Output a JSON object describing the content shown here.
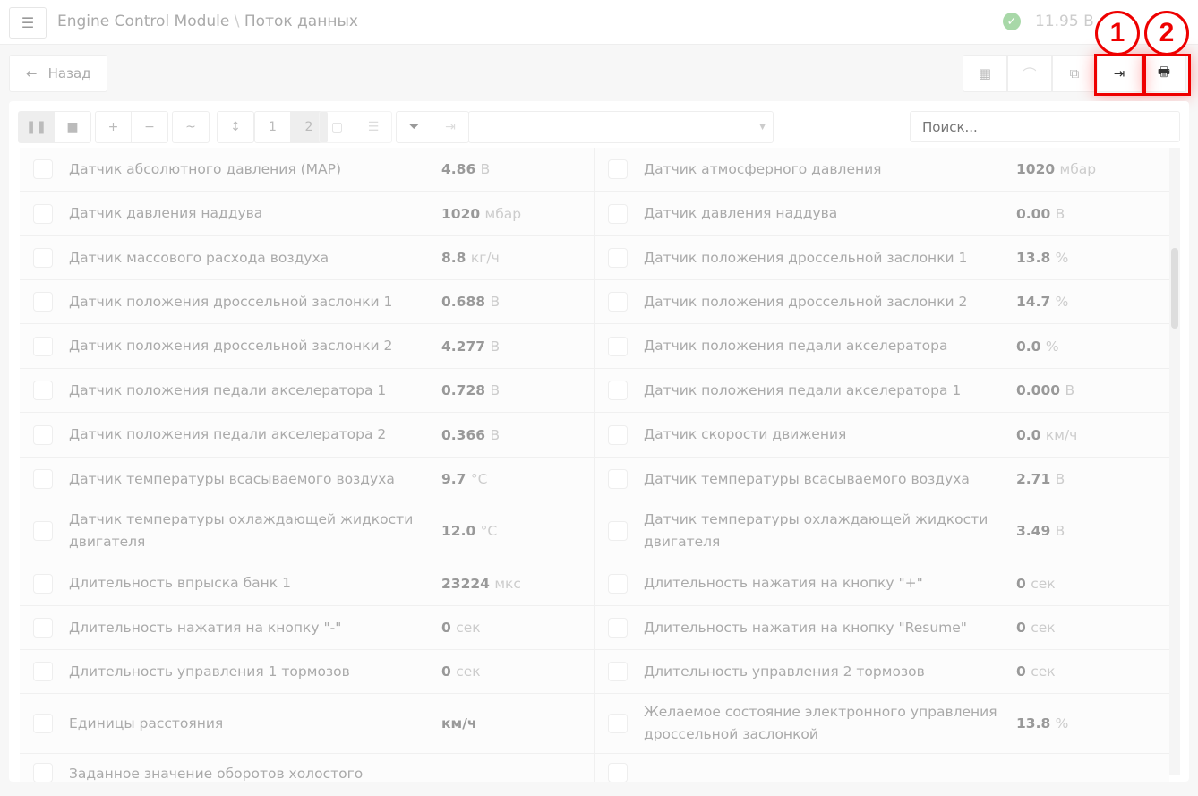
{
  "header": {
    "app": "Engine Control Module",
    "separator": "\\",
    "page": "Поток данных",
    "voltage": "11.95 В"
  },
  "nav": {
    "back_label": "Назад"
  },
  "toolbar": {
    "page1": "1",
    "page2": "2",
    "search_placeholder": "Поиск..."
  },
  "annotations": [
    "1",
    "2"
  ],
  "rows": [
    [
      {
        "label": "Датчик абсолютного давления (MAP)",
        "value": "4.86",
        "unit": "В"
      },
      {
        "label": "Датчик атмосферного давления",
        "value": "1020",
        "unit": "мбар"
      }
    ],
    [
      {
        "label": "Датчик давления наддува",
        "value": "1020",
        "unit": "мбар"
      },
      {
        "label": "Датчик давления наддува",
        "value": "0.00",
        "unit": "В"
      }
    ],
    [
      {
        "label": "Датчик массового расхода воздуха",
        "value": "8.8",
        "unit": "кг/ч"
      },
      {
        "label": "Датчик положения дроссельной заслонки 1",
        "value": "13.8",
        "unit": "%"
      }
    ],
    [
      {
        "label": "Датчик положения дроссельной заслонки 1",
        "value": "0.688",
        "unit": "В"
      },
      {
        "label": "Датчик положения дроссельной заслонки 2",
        "value": "14.7",
        "unit": "%"
      }
    ],
    [
      {
        "label": "Датчик положения дроссельной заслонки 2",
        "value": "4.277",
        "unit": "В"
      },
      {
        "label": "Датчик положения педали акселератора",
        "value": "0.0",
        "unit": "%"
      }
    ],
    [
      {
        "label": "Датчик положения педали акселератора 1",
        "value": "0.728",
        "unit": "В"
      },
      {
        "label": "Датчик положения педали акселератора 1",
        "value": "0.000",
        "unit": "В"
      }
    ],
    [
      {
        "label": "Датчик положения педали акселератора 2",
        "value": "0.366",
        "unit": "В"
      },
      {
        "label": "Датчик скорости движения",
        "value": "0.0",
        "unit": "км/ч"
      }
    ],
    [
      {
        "label": "Датчик температуры всасываемого воздуха",
        "value": "9.7",
        "unit": "°C"
      },
      {
        "label": "Датчик температуры всасываемого воздуха",
        "value": "2.71",
        "unit": "В"
      }
    ],
    [
      {
        "label": "Датчик температуры охлаждающей жидкости двигателя",
        "value": "12.0",
        "unit": "°C"
      },
      {
        "label": "Датчик температуры охлаждающей жидкости двигателя",
        "value": "3.49",
        "unit": "В"
      }
    ],
    [
      {
        "label": "Длительность впрыска банк 1",
        "value": "23224",
        "unit": "мкс"
      },
      {
        "label": "Длительность нажатия на кнопку \"+\"",
        "value": "0",
        "unit": "сек"
      }
    ],
    [
      {
        "label": "Длительность нажатия на кнопку \"-\"",
        "value": "0",
        "unit": "сек"
      },
      {
        "label": "Длительность нажатия на кнопку \"Resume\"",
        "value": "0",
        "unit": "сек"
      }
    ],
    [
      {
        "label": "Длительность управления 1 тормозов",
        "value": "0",
        "unit": "сек"
      },
      {
        "label": "Длительность управления 2 тормозов",
        "value": "0",
        "unit": "сек"
      }
    ],
    [
      {
        "label": "Единицы расстояния",
        "value": "км/ч",
        "unit": ""
      },
      {
        "label": "Желаемое состояние электронного управления дроссельной заслонкой",
        "value": "13.8",
        "unit": "%"
      }
    ],
    [
      {
        "label": "Заданное значение оборотов холостого",
        "value": "",
        "unit": ""
      },
      {
        "label": "",
        "value": "",
        "unit": ""
      }
    ]
  ]
}
